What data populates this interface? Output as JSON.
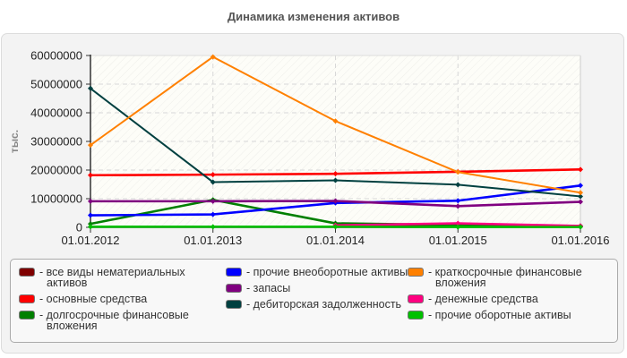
{
  "title": "Динамика изменения активов",
  "chart_data": {
    "type": "line",
    "title": "Динамика изменения активов",
    "xlabel": "",
    "ylabel": "тыс.",
    "ylim": [
      0,
      60000000
    ],
    "yticks": [
      "0",
      "10000000",
      "20000000",
      "30000000",
      "40000000",
      "50000000",
      "60000000"
    ],
    "categories": [
      "01.01.2012",
      "01.01.2013",
      "01.01.2014",
      "01.01.2015",
      "01.01.2016"
    ],
    "grid": true,
    "legend_position": "bottom",
    "series": [
      {
        "name": "все виды нематериальных активов",
        "color": "#7f0000",
        "values": [
          null,
          null,
          300000,
          300000,
          300000
        ]
      },
      {
        "name": "основные средства",
        "color": "#ff0000",
        "values": [
          18200000,
          18400000,
          18700000,
          19400000,
          20200000
        ]
      },
      {
        "name": "долгосрочные финансовые вложения",
        "color": "#008000",
        "values": [
          1200000,
          9600000,
          1400000,
          800000,
          500000
        ]
      },
      {
        "name": "прочие внеоборотные активы",
        "color": "#0000ff",
        "values": [
          4200000,
          4500000,
          8500000,
          9300000,
          14600000
        ]
      },
      {
        "name": "запасы",
        "color": "#800080",
        "values": [
          9100000,
          9100000,
          9200000,
          7400000,
          8900000
        ]
      },
      {
        "name": "дебиторская задолженность",
        "color": "#004040",
        "values": [
          48500000,
          15800000,
          16400000,
          14900000,
          10800000
        ]
      },
      {
        "name": "краткосрочные финансовые вложения",
        "color": "#ff8000",
        "values": [
          28700000,
          59500000,
          37100000,
          19300000,
          12100000
        ]
      },
      {
        "name": "денежные средства",
        "color": "#ff0080",
        "values": [
          null,
          null,
          700000,
          1400000,
          500000
        ]
      },
      {
        "name": "прочие оборотные активы",
        "color": "#00c000",
        "values": [
          200000,
          200000,
          200000,
          100000,
          100000
        ]
      }
    ]
  },
  "legend": {
    "columns": [
      [
        {
          "label": "- все виды нематериальных",
          "label2": "активов",
          "color": "#7f0000"
        },
        {
          "label": "- основные средства",
          "label2": "",
          "color": "#ff0000"
        },
        {
          "label": "- долгосрочные финансовые",
          "label2": "вложения",
          "color": "#008000"
        }
      ],
      [
        {
          "label": "- прочие внеоборотные активы",
          "label2": "",
          "color": "#0000ff"
        },
        {
          "label": "- запасы",
          "label2": "",
          "color": "#800080"
        },
        {
          "label": "- дебиторская задолженность",
          "label2": "",
          "color": "#004040"
        }
      ],
      [
        {
          "label": "- краткосрочные финансовые",
          "label2": "вложения",
          "color": "#ff8000"
        },
        {
          "label": "- денежные средства",
          "label2": "",
          "color": "#ff0080"
        },
        {
          "label": "- прочие оборотные активы",
          "label2": "",
          "color": "#00c000"
        }
      ]
    ]
  }
}
